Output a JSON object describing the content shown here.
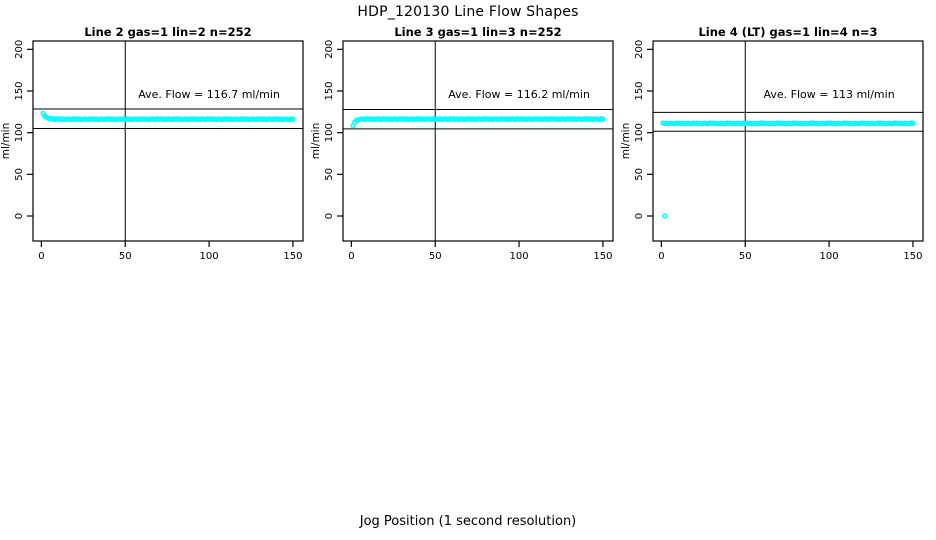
{
  "title": "HDP_120130  Line Flow Shapes",
  "xlabel": "Jog Position (1 second resolution)",
  "point_color": "#00FFFF",
  "axis_color": "#000000",
  "chart_data": {
    "type": "scatter",
    "shared": {
      "xlim": [
        -5,
        156
      ],
      "ylim": [
        -30,
        210
      ],
      "x_ticks": [
        0,
        50,
        100,
        150
      ],
      "y_ticks": [
        0,
        50,
        100,
        150,
        200
      ],
      "ylabel": "ml/min",
      "vline_x": 50,
      "grid": false
    },
    "panels": [
      {
        "title": "Line 2 gas=1 lin=2 n=252",
        "annotation": "Ave. Flow =  116.7  ml/min",
        "ave_flow": 116.7,
        "n": 252,
        "hlines": [
          128.4,
          105.0
        ],
        "x_start": 1,
        "x_step": 1,
        "y": [
          123.1,
          119.8,
          118.8,
          117.2,
          117.2,
          117.0,
          116.3,
          116.0,
          116.8,
          116.3,
          116.6,
          115.9,
          116.4,
          115.7,
          116.3,
          116.5,
          116.0,
          115.8,
          116.7,
          116.2,
          116.6,
          115.9,
          116.4,
          115.7,
          116.3,
          116.5,
          116.0,
          115.8,
          116.7,
          116.2,
          116.6,
          115.9,
          116.4,
          115.7,
          116.3,
          116.5,
          116.0,
          115.8,
          116.7,
          116.2,
          116.6,
          115.9,
          116.4,
          115.7,
          116.3,
          116.5,
          116.0,
          115.8,
          116.7,
          116.2,
          116.6,
          115.9,
          116.4,
          115.7,
          116.3,
          116.5,
          116.0,
          115.8,
          116.7,
          116.2,
          116.6,
          115.9,
          116.4,
          115.7,
          116.3,
          116.5,
          116.0,
          115.8,
          116.7,
          116.2,
          116.6,
          115.9,
          116.4,
          115.7,
          116.3,
          116.5,
          116.0,
          115.8,
          116.7,
          116.2,
          116.6,
          115.9,
          116.4,
          115.7,
          116.3,
          116.5,
          116.0,
          115.8,
          116.7,
          116.2,
          116.6,
          115.9,
          116.4,
          115.7,
          116.3,
          116.5,
          116.0,
          115.8,
          116.7,
          116.2,
          116.6,
          115.9,
          116.4,
          115.7,
          116.3,
          116.5,
          116.0,
          115.8,
          116.7,
          116.2,
          116.6,
          115.9,
          116.4,
          115.7,
          116.3,
          116.5,
          116.0,
          115.8,
          116.7,
          116.2,
          116.6,
          115.9,
          116.4,
          115.7,
          116.3,
          116.5,
          116.0,
          115.8,
          116.7,
          116.2,
          116.6,
          115.9,
          116.4,
          115.7,
          116.3,
          116.5,
          116.0,
          115.8,
          116.7,
          116.2,
          116.6,
          115.9,
          116.4,
          115.7,
          116.3,
          116.5,
          116.0,
          115.8,
          116.7,
          116.2
        ],
        "extra_points": []
      },
      {
        "title": "Line 3 gas=1 lin=3 n=252",
        "annotation": "Ave. Flow =  116.2  ml/min",
        "ave_flow": 116.2,
        "n": 252,
        "hlines": [
          127.8,
          104.6
        ],
        "x_start": 1,
        "x_step": 1,
        "y": [
          108.3,
          112.5,
          114.9,
          115.2,
          116.1,
          116.4,
          116.1,
          116.0,
          116.7,
          116.3,
          116.7,
          116.0,
          116.5,
          115.8,
          116.4,
          116.6,
          116.1,
          115.9,
          116.8,
          116.3,
          116.7,
          116.0,
          116.5,
          115.8,
          116.4,
          116.6,
          116.1,
          115.9,
          116.8,
          116.3,
          116.7,
          116.0,
          116.5,
          115.8,
          116.4,
          116.6,
          116.1,
          115.9,
          116.8,
          116.3,
          116.7,
          116.0,
          116.5,
          115.8,
          116.4,
          116.6,
          116.1,
          115.9,
          116.8,
          116.3,
          116.7,
          116.0,
          116.5,
          115.8,
          116.4,
          116.6,
          116.1,
          115.9,
          116.8,
          116.3,
          116.7,
          116.0,
          116.5,
          115.8,
          116.4,
          116.6,
          116.1,
          115.9,
          116.8,
          116.3,
          116.7,
          116.0,
          116.5,
          115.8,
          116.4,
          116.6,
          116.1,
          115.9,
          116.8,
          116.3,
          116.7,
          116.0,
          116.5,
          115.8,
          116.4,
          116.6,
          116.1,
          115.9,
          116.8,
          116.3,
          116.7,
          116.0,
          116.5,
          115.8,
          116.4,
          116.6,
          116.1,
          115.9,
          116.8,
          116.3,
          116.7,
          116.0,
          116.5,
          115.8,
          116.4,
          116.6,
          116.1,
          115.9,
          116.8,
          116.3,
          116.7,
          116.0,
          116.5,
          115.8,
          116.4,
          116.6,
          116.1,
          115.9,
          116.8,
          116.3,
          116.7,
          116.0,
          116.5,
          115.8,
          116.4,
          116.6,
          116.1,
          115.9,
          116.8,
          116.3,
          116.7,
          116.0,
          116.5,
          115.8,
          116.4,
          116.6,
          116.1,
          115.9,
          116.8,
          116.3,
          116.7,
          116.0,
          116.5,
          115.8,
          116.4,
          116.6,
          116.1,
          115.9,
          116.8,
          116.3
        ],
        "extra_points": []
      },
      {
        "title": "Line 4 (LT) gas=1 lin=4 n=3",
        "annotation": "Ave. Flow =  113  ml/min",
        "ave_flow": 113,
        "n": 3,
        "hlines": [
          124.3,
          101.7
        ],
        "x_start": 1,
        "x_step": 1,
        "y": [
          111.6,
          110.9,
          111.4,
          110.7,
          111.3,
          111.5,
          111.0,
          110.8,
          111.7,
          111.2,
          111.6,
          110.9,
          111.4,
          110.7,
          111.3,
          111.5,
          111.0,
          110.8,
          111.7,
          111.2,
          111.6,
          110.9,
          111.4,
          110.7,
          111.3,
          111.5,
          111.0,
          110.8,
          111.7,
          111.2,
          111.6,
          110.9,
          111.4,
          110.7,
          111.3,
          111.5,
          111.0,
          110.8,
          111.7,
          111.2,
          111.6,
          110.9,
          111.4,
          110.7,
          111.3,
          111.5,
          111.0,
          110.8,
          111.7,
          111.2,
          111.6,
          110.9,
          111.4,
          110.7,
          111.3,
          111.5,
          111.0,
          110.8,
          111.7,
          111.2,
          111.6,
          110.9,
          111.4,
          110.7,
          111.3,
          111.5,
          111.0,
          110.8,
          111.7,
          111.2,
          111.6,
          110.9,
          111.4,
          110.7,
          111.3,
          111.5,
          111.0,
          110.8,
          111.7,
          111.2,
          111.6,
          110.9,
          111.4,
          110.7,
          111.3,
          111.5,
          111.0,
          110.8,
          111.7,
          111.2,
          111.6,
          110.9,
          111.4,
          110.7,
          111.3,
          111.5,
          111.0,
          110.8,
          111.7,
          111.2,
          111.6,
          110.9,
          111.4,
          110.7,
          111.3,
          111.5,
          111.0,
          110.8,
          111.7,
          111.2,
          111.6,
          110.9,
          111.4,
          110.7,
          111.3,
          111.5,
          111.0,
          110.8,
          111.7,
          111.2,
          111.6,
          110.9,
          111.4,
          110.7,
          111.3,
          111.5,
          111.0,
          110.8,
          111.7,
          111.2,
          111.6,
          110.9,
          111.4,
          110.7,
          111.3,
          111.5,
          111.0,
          110.8,
          111.7,
          111.2,
          111.6,
          110.9,
          111.4,
          110.7,
          111.3,
          111.5,
          111.0,
          110.8,
          111.7,
          111.2
        ],
        "extra_points": [
          {
            "x": 2,
            "y": 0
          }
        ]
      }
    ]
  }
}
